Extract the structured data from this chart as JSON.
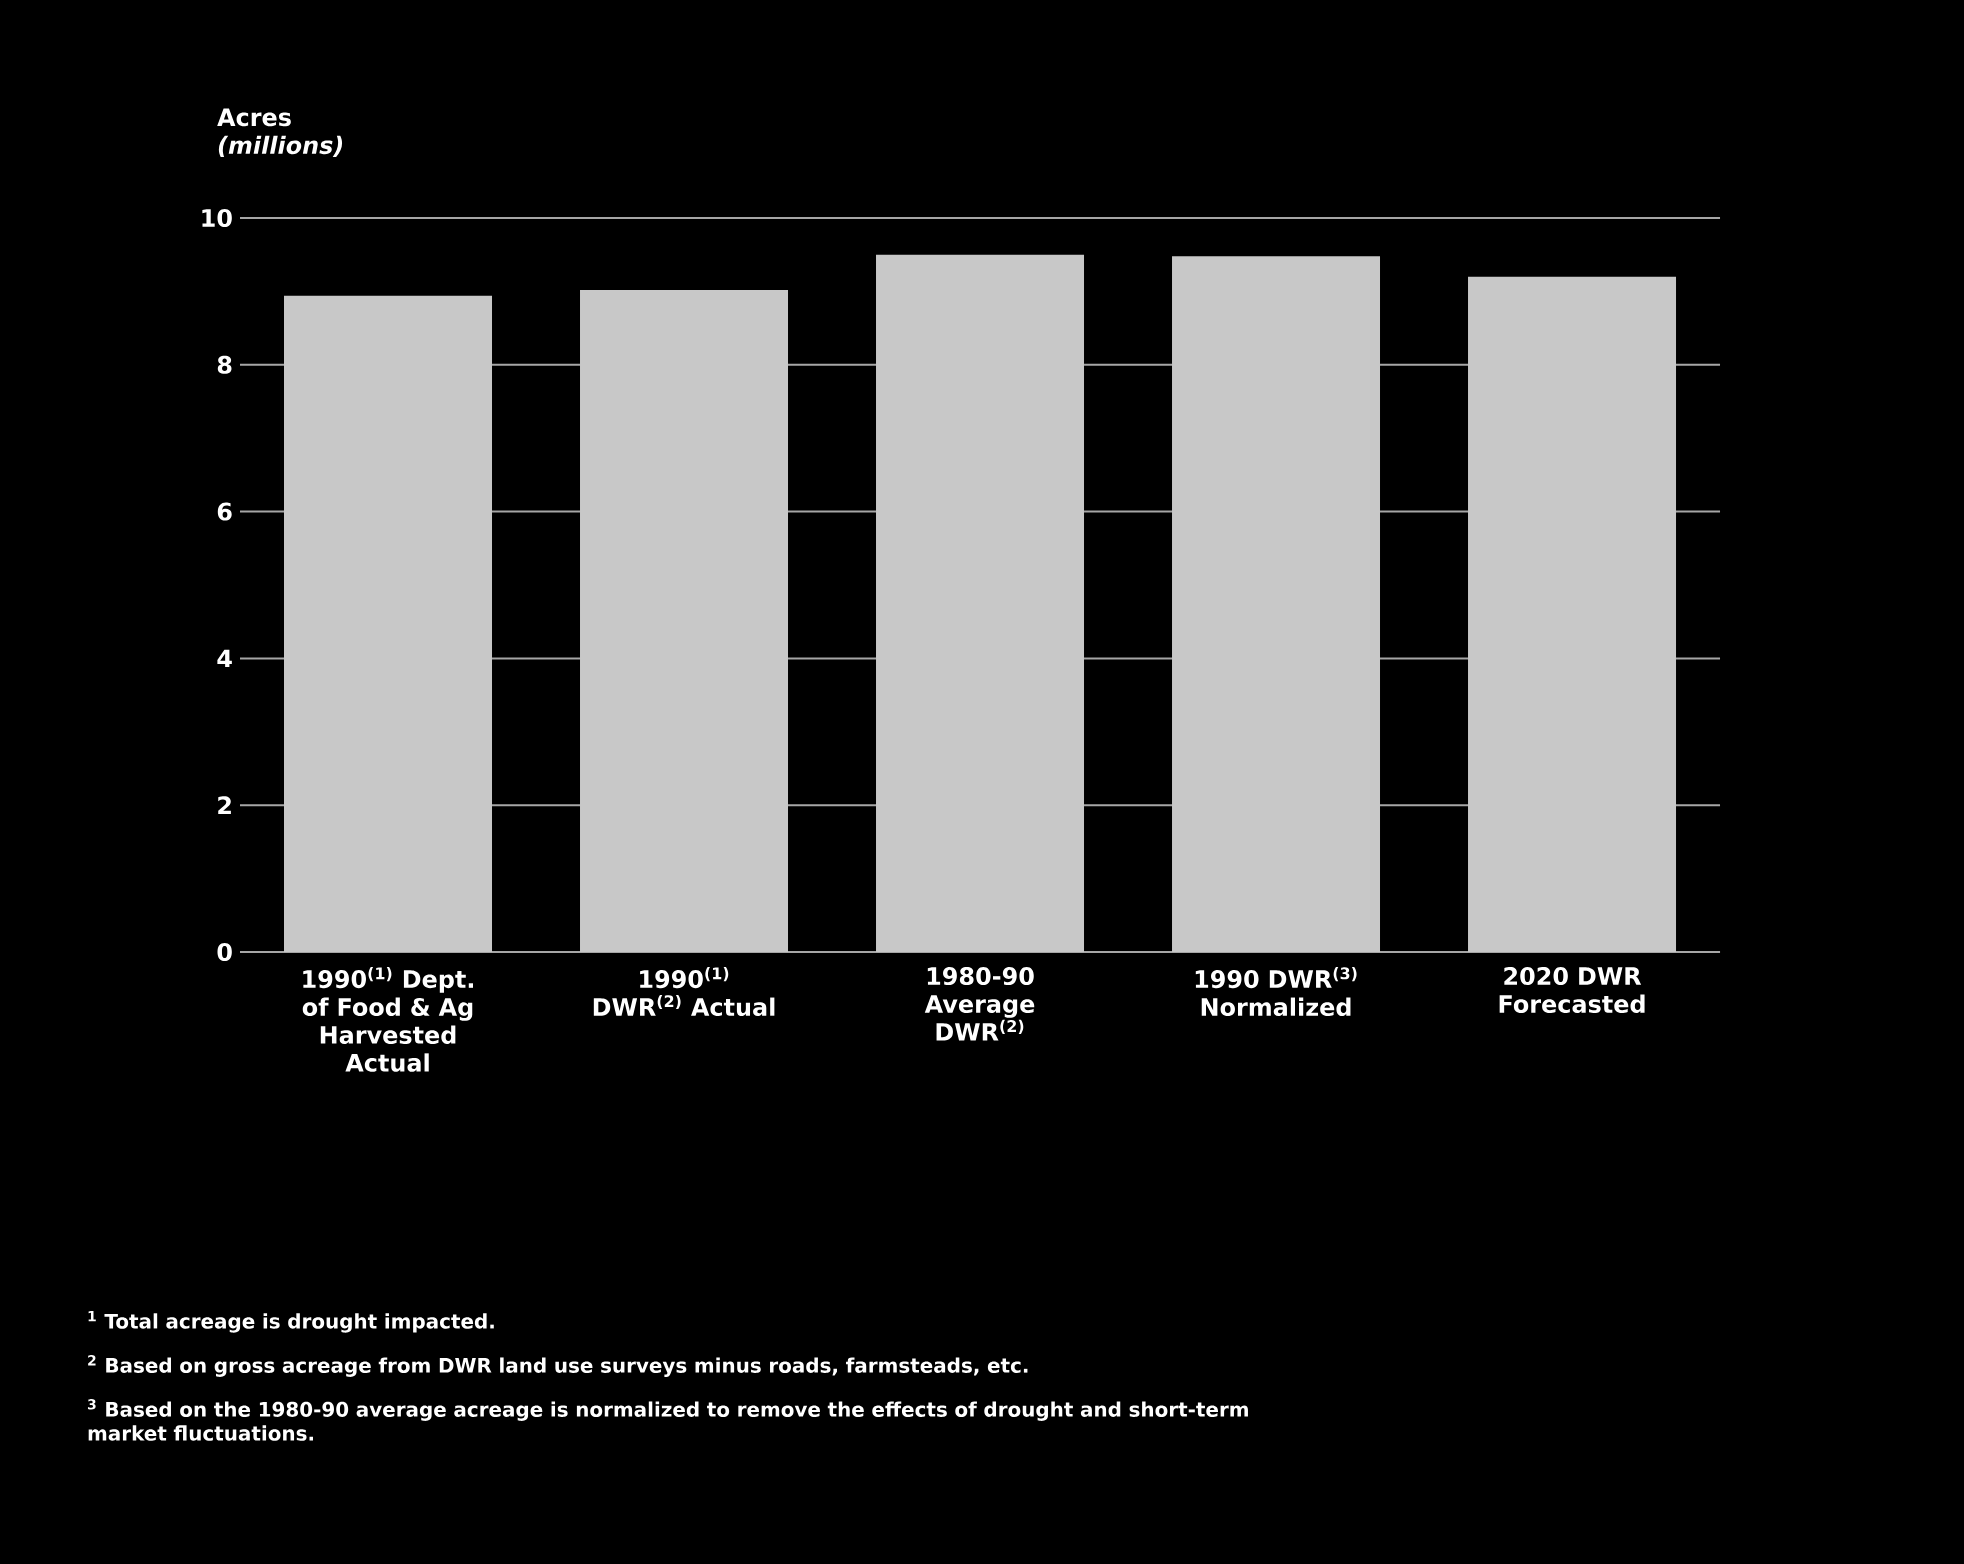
{
  "chart_data": {
    "type": "bar",
    "ylabel": "Acres *(millions)*",
    "categories": [
      "1990$^{(1)}$ Dept. of Food & Ag Harvested Actual",
      "1990$^{(1)}$ DWR$^{(2)}$ Actual",
      "1980-90 Average DWR$^{(2)}$",
      "1990 DWR$^{(3)}$ Normalized",
      "2020 DWR Forecasted"
    ],
    "values": [
      8.94,
      9.02,
      9.5,
      9.48,
      9.2
    ],
    "color": "#c8c8c8",
    "ylim": [
      0,
      10
    ],
    "yticks": [
      0,
      2,
      4,
      6,
      8,
      10
    ],
    "grid": "y",
    "annotations": [
      "$^{1}$ Total acreage is drought impacted.",
      "$^{2}$ Based on gross acreage from DWR land use surveys minus roads, farmsteads, etc.",
      "$^{3}$ Based on the 1980-90 average acreage is normalized to remove the effects of drought and short-term market fluctuations."
    ]
  }
}
